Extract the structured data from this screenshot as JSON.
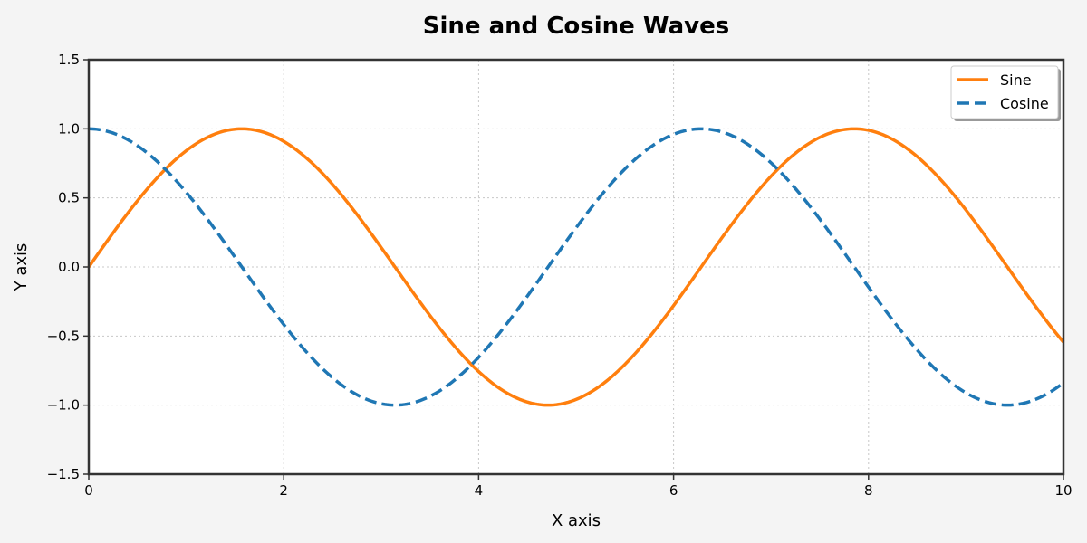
{
  "chart_data": {
    "type": "line",
    "title": "Sine and Cosine Waves",
    "xlabel": "X axis",
    "ylabel": "Y axis",
    "xlim": [
      0,
      10
    ],
    "ylim": [
      -1.5,
      1.5
    ],
    "xticks": [
      0,
      2,
      4,
      6,
      8,
      10
    ],
    "xtick_labels": [
      "0",
      "2",
      "4",
      "6",
      "8",
      "10"
    ],
    "yticks": [
      1.5,
      1.0,
      0.5,
      0.0,
      -0.5,
      -1.0,
      -1.5
    ],
    "ytick_labels": [
      "1.5",
      "1.0",
      "0.5",
      "0.0",
      "−0.5",
      "−1.0",
      "−1.5"
    ],
    "grid": true,
    "legend_position": "top-right",
    "x": [
      0,
      0.5,
      1,
      1.5,
      2,
      2.5,
      3,
      3.5,
      4,
      4.5,
      5,
      5.5,
      6,
      6.5,
      7,
      7.5,
      8,
      8.5,
      9,
      9.5,
      10
    ],
    "series": [
      {
        "name": "Sine",
        "color": "#ff7f0e",
        "style": "solid",
        "function": "sin",
        "values": [
          0.0,
          0.479,
          0.841,
          0.997,
          0.909,
          0.598,
          0.141,
          -0.351,
          -0.757,
          -0.978,
          -0.959,
          -0.706,
          -0.279,
          0.215,
          0.657,
          0.938,
          0.989,
          0.798,
          0.412,
          -0.075,
          -0.544
        ]
      },
      {
        "name": "Cosine",
        "color": "#1f77b4",
        "style": "dashed",
        "function": "cos",
        "values": [
          1.0,
          0.878,
          0.54,
          0.071,
          -0.416,
          -0.801,
          -0.99,
          -0.936,
          -0.654,
          -0.211,
          0.284,
          0.709,
          0.96,
          0.977,
          0.754,
          0.347,
          -0.146,
          -0.602,
          -0.911,
          -0.997,
          -0.839
        ]
      }
    ]
  }
}
